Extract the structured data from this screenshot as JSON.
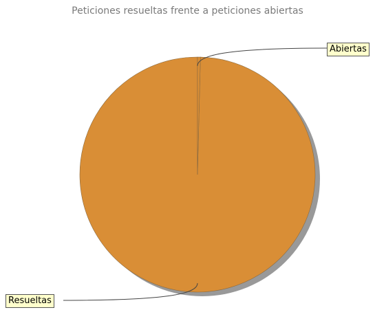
{
  "chart_data": {
    "type": "pie",
    "title": "Peticiones resueltas frente a peticiones abiertas",
    "slices": [
      {
        "label": "Resueltas",
        "value": 99.6,
        "color": "#d98e36"
      },
      {
        "label": "Abiertas",
        "value": 0.4,
        "color": "#d98e36"
      }
    ],
    "legend": "none"
  }
}
